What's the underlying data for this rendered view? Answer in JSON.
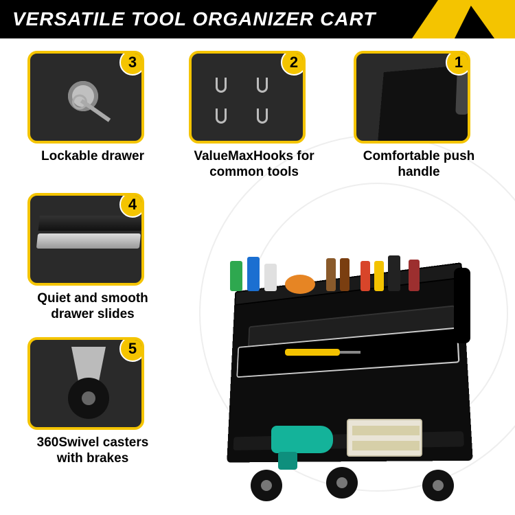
{
  "header": {
    "title": "VERSATILE TOOL ORGANIZER CART"
  },
  "colors": {
    "accent": "#f4c400",
    "header_bg": "#000000",
    "header_text": "#ffffff",
    "caption_text": "#000000",
    "thumb_bg": "#2a2a2a",
    "ring": "#eeeeee"
  },
  "features": [
    {
      "badge": "3",
      "caption": "Lockable drawer"
    },
    {
      "badge": "2",
      "caption": "ValueMaxHooks for common tools"
    },
    {
      "badge": "1",
      "caption": "Comfortable push handle"
    },
    {
      "badge": "4",
      "caption": "Quiet and smooth drawer slides"
    },
    {
      "badge": "5",
      "caption": "360Swivel casters with brakes"
    }
  ],
  "main_product": {
    "name": "tool-organizer-cart",
    "item_colors": [
      "#2ea84f",
      "#1b6fd1",
      "#e0e0e0",
      "#e68524",
      "#8a5a2b",
      "#7a3e10",
      "#d8452a",
      "#f3c200",
      "#222222",
      "#9c2f2f"
    ],
    "toolbox_color": "#e9e4d6",
    "drill_color": "#14b39a"
  }
}
